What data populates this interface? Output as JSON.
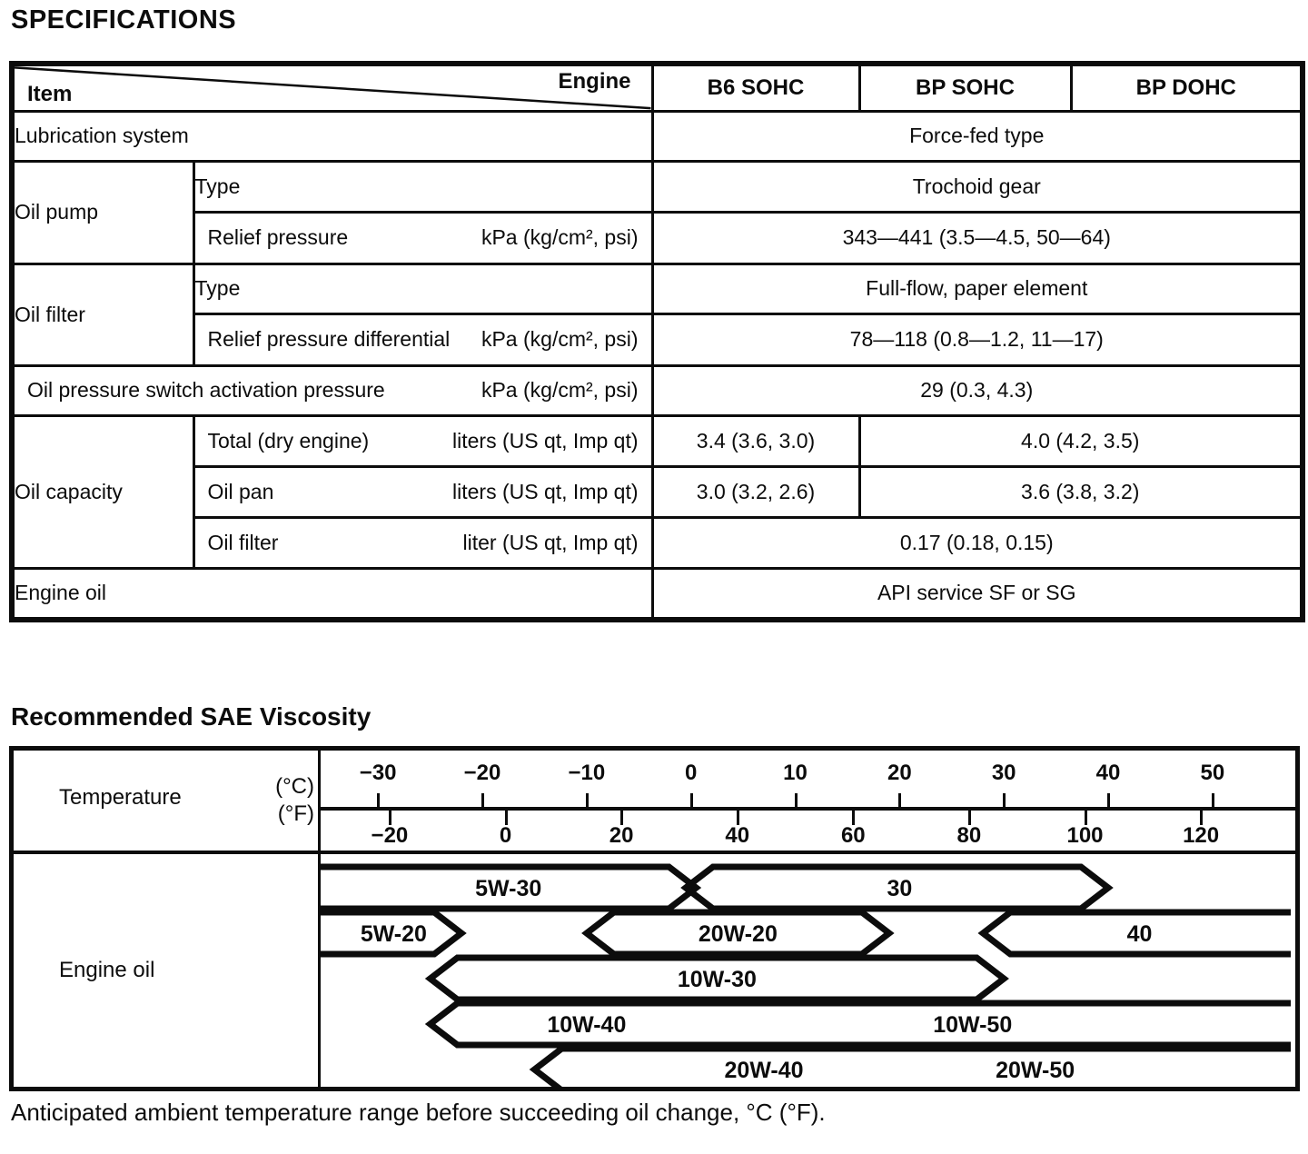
{
  "page": {
    "title": "SPECIFICATIONS",
    "section2_title": "Recommended SAE Viscosity",
    "caption": "Anticipated ambient temperature range before succeeding oil change, °C (°F)."
  },
  "spec_table": {
    "corner": {
      "top_right": "Engine",
      "bottom_left": "Item"
    },
    "columns": [
      "B6 SOHC",
      "BP SOHC",
      "BP DOHC"
    ],
    "rows": {
      "lubrication": {
        "item": "Lubrication system",
        "value": "Force-fed type"
      },
      "oil_pump": {
        "item": "Oil pump",
        "type": {
          "label": "Type",
          "value": "Trochoid gear"
        },
        "relief": {
          "label": "Relief pressure",
          "unit": "kPa (kg/cm², psi)",
          "value": "343—441 (3.5—4.5, 50—64)"
        }
      },
      "oil_filter": {
        "item": "Oil filter",
        "type": {
          "label": "Type",
          "value": "Full-flow, paper element"
        },
        "relief": {
          "label": "Relief pressure differential",
          "unit": "kPa (kg/cm², psi)",
          "value": "78—118 (0.8—1.2, 11—17)"
        }
      },
      "oil_pressure_switch": {
        "label": "Oil pressure switch activation pressure",
        "unit": "kPa (kg/cm², psi)",
        "value": "29 (0.3, 4.3)"
      },
      "oil_capacity": {
        "item": "Oil capacity",
        "total": {
          "label": "Total (dry engine)",
          "unit": "liters (US qt, Imp qt)",
          "b6": "3.4 (3.6, 3.0)",
          "bp": "4.0 (4.2, 3.5)"
        },
        "oil_pan": {
          "label": "Oil pan",
          "unit": "liters (US qt, Imp qt)",
          "b6": "3.0 (3.2, 2.6)",
          "bp": "3.6 (3.8, 3.2)"
        },
        "oil_filter": {
          "label": "Oil filter",
          "unit": "liter (US qt, Imp qt)",
          "value": "0.17 (0.18, 0.15)"
        }
      },
      "engine_oil": {
        "item": "Engine oil",
        "value": "API service SF or SG"
      }
    }
  },
  "chart": {
    "row_labels": {
      "temperature": "Temperature",
      "celsius": "(°C)",
      "fahrenheit": "(°F)",
      "engine_oil": "Engine oil"
    }
  },
  "chart_data": {
    "type": "range-bands",
    "title": "Recommended SAE Viscosity",
    "x_axis": {
      "unit_top": "°C",
      "unit_bottom": "°F",
      "c_ticks": [
        -30,
        -20,
        -10,
        0,
        10,
        20,
        30,
        40,
        50
      ],
      "f_ticks": [
        -20,
        0,
        20,
        40,
        60,
        80,
        100,
        120
      ],
      "c_range": [
        -35.5,
        57.5
      ]
    },
    "bands": [
      [
        {
          "from": -35.5,
          "to": 0.5,
          "left": "edge",
          "right": "point",
          "labels": [
            {
              "text": "5W-30",
              "at": -17.5
            }
          ]
        },
        {
          "from": -0.5,
          "to": 40,
          "left": "point",
          "right": "point",
          "labels": [
            {
              "text": "30",
              "at": 20
            }
          ]
        }
      ],
      [
        {
          "from": -35.5,
          "to": -22,
          "left": "edge",
          "right": "point",
          "labels": [
            {
              "text": "5W-20",
              "at": -28.5
            }
          ]
        },
        {
          "from": -10,
          "to": 19,
          "left": "point",
          "right": "point",
          "labels": [
            {
              "text": "20W-20",
              "at": 4.5
            }
          ]
        },
        {
          "from": 28,
          "to": 57.5,
          "left": "point",
          "right": "edge",
          "labels": [
            {
              "text": "40",
              "at": 43
            }
          ]
        }
      ],
      [
        {
          "from": -25,
          "to": 30,
          "left": "point",
          "right": "point",
          "labels": [
            {
              "text": "10W-30",
              "at": 2.5
            }
          ]
        }
      ],
      [
        {
          "from": -25,
          "to": 57.5,
          "left": "point",
          "right": "edge",
          "labels": [
            {
              "text": "10W-40",
              "at": -10
            },
            {
              "text": "10W-50",
              "at": 27
            }
          ]
        }
      ],
      [
        {
          "from": -15,
          "to": 57.5,
          "left": "point",
          "right": "edge",
          "labels": [
            {
              "text": "20W-40",
              "at": 7
            },
            {
              "text": "20W-50",
              "at": 33
            }
          ]
        }
      ]
    ]
  }
}
